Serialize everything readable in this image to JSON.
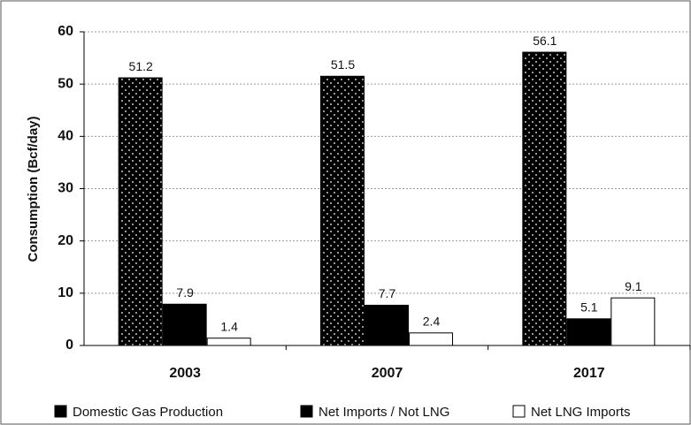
{
  "chart_data": {
    "type": "bar",
    "y_label": "Consumption (Bcf/day)",
    "categories": [
      "2003",
      "2007",
      "2017"
    ],
    "series": [
      {
        "name": "Domestic Gas Production",
        "color": "#000000",
        "pattern": "dots",
        "values": [
          51.2,
          51.5,
          56.1
        ]
      },
      {
        "name": "Net Imports / Not LNG",
        "color": "#000000",
        "values": [
          7.9,
          7.7,
          5.1
        ]
      },
      {
        "name": "Net LNG Imports",
        "color": "#ffffff",
        "values": [
          1.4,
          2.4,
          9.1
        ]
      }
    ],
    "ylim": [
      0,
      60
    ],
    "yticks": [
      0,
      10,
      20,
      30,
      40,
      50,
      60
    ],
    "grid": true,
    "legend": "bottom"
  }
}
